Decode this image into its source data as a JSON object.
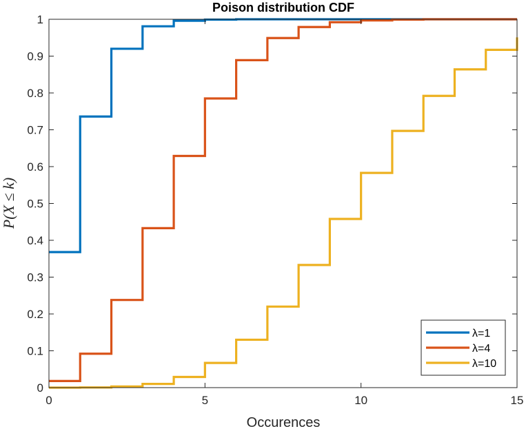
{
  "chart_data": {
    "type": "line",
    "title": "Poison distribution CDF",
    "xlabel": "Occurences",
    "ylabel": "P(X ≤ k)",
    "xlim": [
      0,
      15
    ],
    "ylim": [
      0,
      1
    ],
    "xticks": [
      0,
      5,
      10,
      15
    ],
    "yticks": [
      0,
      0.1,
      0.2,
      0.3,
      0.4,
      0.5,
      0.6,
      0.7,
      0.8,
      0.9,
      1
    ],
    "ytick_labels": [
      "0",
      "0.1",
      "0.2",
      "0.3",
      "0.4",
      "0.5",
      "0.6",
      "0.7",
      "0.8",
      "0.9",
      "1"
    ],
    "xtick_labels": [
      "0",
      "5",
      "10",
      "15"
    ],
    "grid": false,
    "legend_position": "bottom-right",
    "x": [
      0,
      1,
      2,
      3,
      4,
      5,
      6,
      7,
      8,
      9,
      10,
      11,
      12,
      13,
      14,
      15
    ],
    "series": [
      {
        "name": "λ=1",
        "color": "#0072BD",
        "values": [
          0.368,
          0.736,
          0.92,
          0.981,
          0.996,
          0.999,
          1.0,
          1.0,
          1.0,
          1.0,
          1.0,
          1.0,
          1.0,
          1.0,
          1.0,
          1.0
        ]
      },
      {
        "name": "λ=4",
        "color": "#D95319",
        "values": [
          0.018,
          0.092,
          0.238,
          0.433,
          0.629,
          0.785,
          0.889,
          0.949,
          0.979,
          0.992,
          0.997,
          0.999,
          1.0,
          1.0,
          1.0,
          1.0
        ]
      },
      {
        "name": "λ=10",
        "color": "#EDB120",
        "values": [
          0.0,
          0.0005,
          0.003,
          0.01,
          0.029,
          0.067,
          0.13,
          0.22,
          0.333,
          0.458,
          0.583,
          0.697,
          0.792,
          0.864,
          0.917,
          0.951
        ]
      }
    ]
  }
}
